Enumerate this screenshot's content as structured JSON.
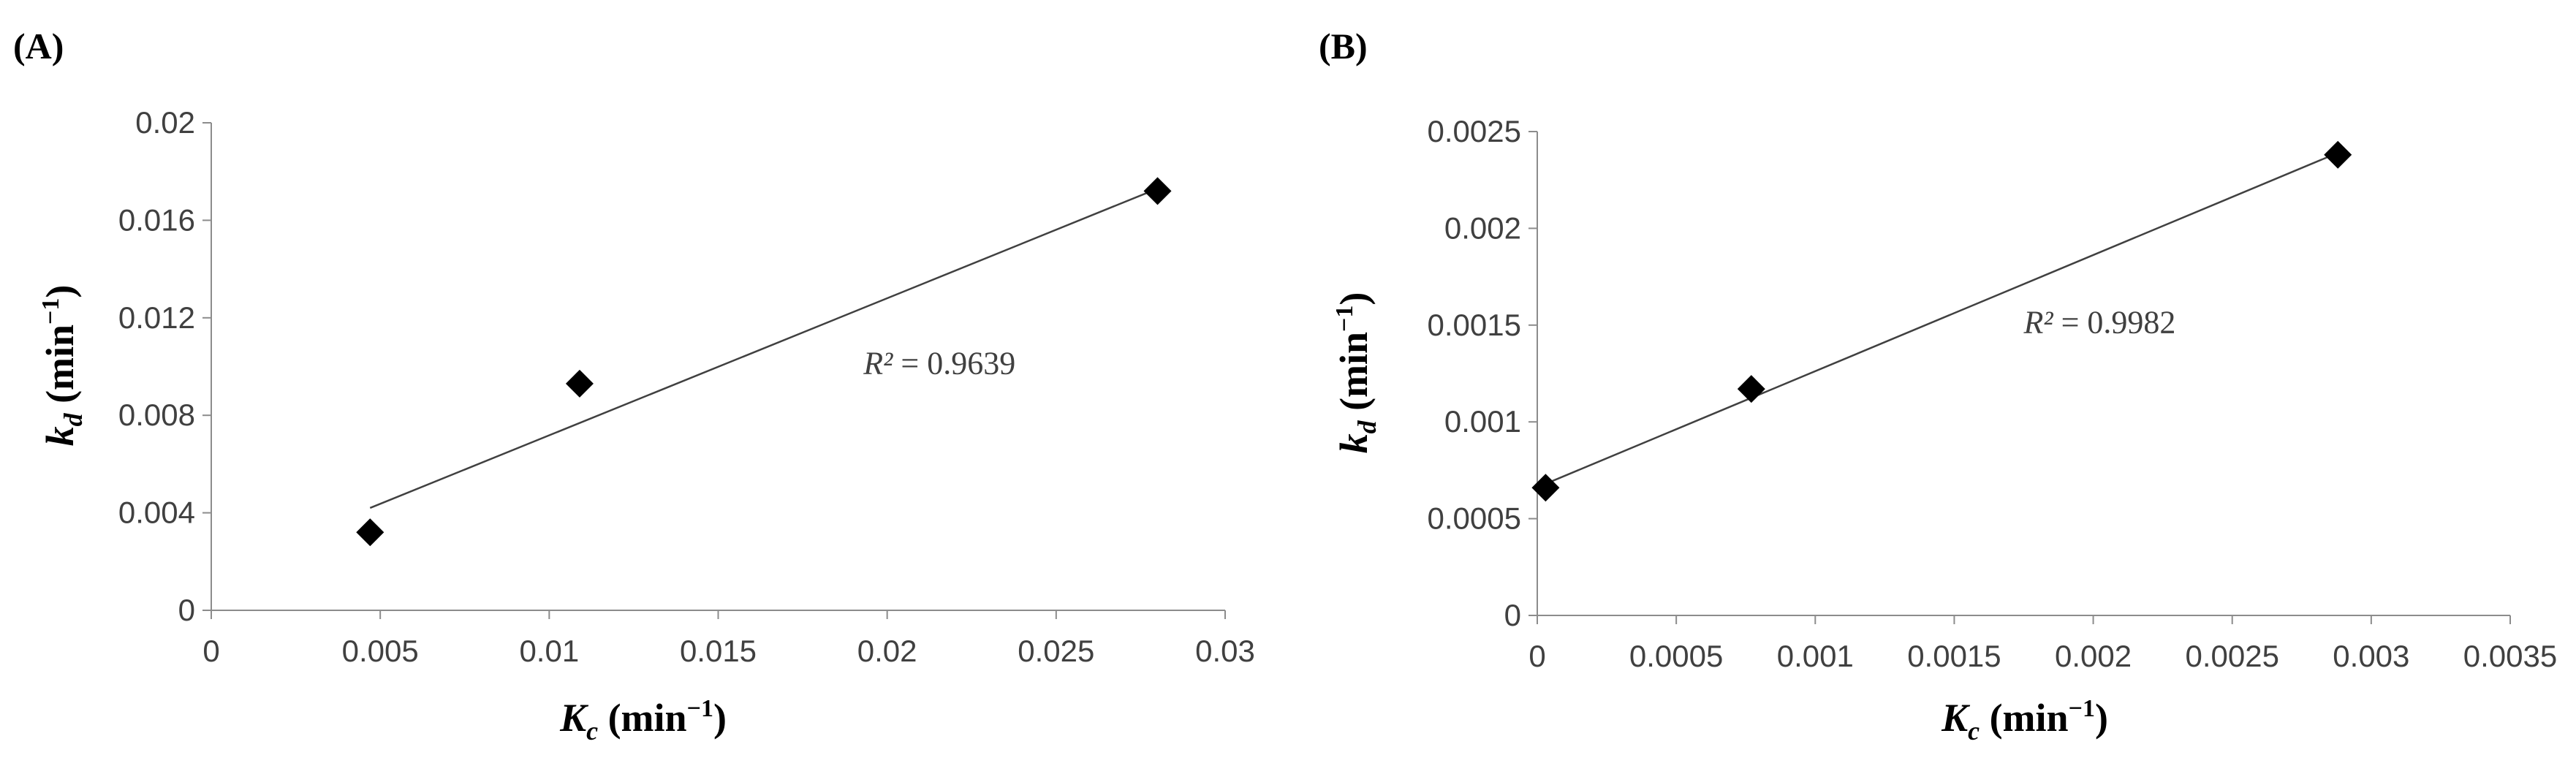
{
  "chart_data": [
    {
      "type": "scatter",
      "panel_label": "(A)",
      "xlabel": {
        "main": "K",
        "sub": "c",
        "unit": " (min",
        "sup": "−1",
        "close": ")"
      },
      "ylabel": {
        "main": "k",
        "sub": "d",
        "unit": " (min",
        "sup": "−1",
        "close": ")"
      },
      "xlim": [
        0,
        0.03
      ],
      "ylim": [
        0,
        0.02
      ],
      "xticks": [
        0,
        0.005,
        0.01,
        0.015,
        0.02,
        0.025,
        0.03
      ],
      "xtick_labels": [
        "0",
        "0.005",
        "0.01",
        "0.015",
        "0.02",
        "0.025",
        "0.03"
      ],
      "yticks": [
        0,
        0.004,
        0.008,
        0.012,
        0.016,
        0.02
      ],
      "ytick_labels": [
        "0",
        "0.004",
        "0.008",
        "0.012",
        "0.016",
        "0.02"
      ],
      "points": [
        {
          "x": 0.0047,
          "y": 0.0032
        },
        {
          "x": 0.0109,
          "y": 0.0093
        },
        {
          "x": 0.028,
          "y": 0.0172
        }
      ],
      "trendline": {
        "x": [
          0.0047,
          0.028
        ],
        "y": [
          0.0042,
          0.0173
        ]
      },
      "r2": {
        "label": "R²",
        "eq": " = ",
        "value": "0.9639",
        "at": [
          0.0193,
          0.0097
        ]
      },
      "grid": false,
      "marker_color": "#000000"
    },
    {
      "type": "scatter",
      "panel_label": "(B)",
      "xlabel": {
        "main": "K",
        "sub": "c",
        "unit": " (min",
        "sup": "−1",
        "close": ")"
      },
      "ylabel": {
        "main": "k",
        "sub": "d",
        "unit": " (min",
        "sup": "−1",
        "close": ")"
      },
      "xlim": [
        0,
        0.0035
      ],
      "ylim": [
        0,
        0.0025
      ],
      "xticks": [
        0,
        0.0005,
        0.001,
        0.0015,
        0.002,
        0.0025,
        0.003,
        0.0035
      ],
      "xtick_labels": [
        "0",
        "0.0005",
        "0.001",
        "0.0015",
        "0.002",
        "0.0025",
        "0.003",
        "0.0035"
      ],
      "yticks": [
        0,
        0.0005,
        0.001,
        0.0015,
        0.002,
        0.0025
      ],
      "ytick_labels": [
        "0",
        "0.0005",
        "0.001",
        "0.0015",
        "0.002",
        "0.0025"
      ],
      "points": [
        {
          "x": 3e-05,
          "y": 0.00066
        },
        {
          "x": 0.00077,
          "y": 0.00117
        },
        {
          "x": 0.00288,
          "y": 0.00238
        }
      ],
      "trendline": {
        "x": [
          3e-05,
          0.00288
        ],
        "y": [
          0.00068,
          0.00239
        ]
      },
      "r2": {
        "label": "R²",
        "eq": " = ",
        "value": "0.9982",
        "at": [
          0.00175,
          0.00146
        ]
      },
      "grid": false,
      "marker_color": "#000000"
    }
  ]
}
